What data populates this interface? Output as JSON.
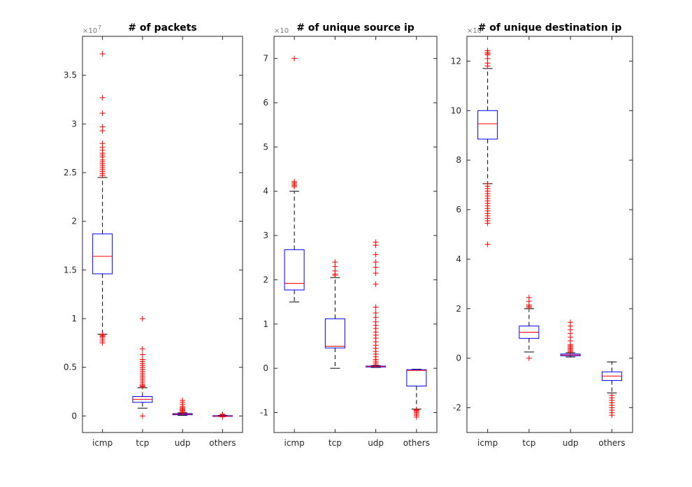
{
  "colors": {
    "box": "#0000ff",
    "median": "#ff0000",
    "outlier": "#ff0000",
    "whisker": "#000000",
    "axis": "#262626"
  },
  "chart_data": [
    {
      "type": "box",
      "title": "# of packets",
      "categories": [
        "icmp",
        "tcp",
        "udp",
        "others"
      ],
      "ylim": [
        -0.17,
        3.9
      ],
      "yticks": [
        0,
        0.5,
        1,
        1.5,
        2,
        2.5,
        3,
        3.5
      ],
      "ytick_labels": [
        "0",
        "0.5",
        "1",
        "1.5",
        "2",
        "2.5",
        "3",
        "3.5"
      ],
      "y_exponent": "×10",
      "y_exponent_power": "7",
      "boxes": [
        {
          "category": "icmp",
          "whisker_low": 0.84,
          "q1": 1.46,
          "median": 1.64,
          "q3": 1.87,
          "whisker_high": 2.45,
          "outliers": [
            0.75,
            0.77,
            0.79,
            0.81,
            0.82,
            0.83,
            0.84,
            2.47,
            2.49,
            2.51,
            2.53,
            2.55,
            2.57,
            2.59,
            2.61,
            2.63,
            2.66,
            2.68,
            2.7,
            2.73,
            2.76,
            2.8,
            2.93,
            2.97,
            3.11,
            3.27,
            3.72
          ]
        },
        {
          "category": "tcp",
          "whisker_low": 0.08,
          "q1": 0.14,
          "median": 0.17,
          "q3": 0.2,
          "whisker_high": 0.29,
          "outliers": [
            0.0,
            0.3,
            0.31,
            0.32,
            0.34,
            0.36,
            0.38,
            0.4,
            0.42,
            0.44,
            0.46,
            0.48,
            0.5,
            0.52,
            0.54,
            0.56,
            0.58,
            0.63,
            0.69,
            1.0
          ]
        },
        {
          "category": "udp",
          "whisker_low": 0.005,
          "q1": 0.012,
          "median": 0.018,
          "q3": 0.024,
          "whisker_high": 0.032,
          "outliers": [
            0.035,
            0.045,
            0.055,
            0.065,
            0.075,
            0.085,
            0.1,
            0.12,
            0.14,
            0.16
          ]
        },
        {
          "category": "others",
          "whisker_low": -0.005,
          "q1": -0.002,
          "median": 0.0,
          "q3": 0.003,
          "whisker_high": 0.006,
          "outliers": [
            -0.01,
            0.012,
            0.018
          ]
        }
      ]
    },
    {
      "type": "box",
      "title": "# of unique source ip",
      "categories": [
        "icmp",
        "tcp",
        "udp",
        "others"
      ],
      "ylim": [
        -1.45,
        7.5
      ],
      "yticks": [
        -1,
        0,
        1,
        2,
        3,
        4,
        5,
        6,
        7
      ],
      "ytick_labels": [
        "-1",
        "0",
        "1",
        "2",
        "3",
        "4",
        "5",
        "6",
        "7"
      ],
      "y_exponent": "×10",
      "y_exponent_power": "",
      "boxes": [
        {
          "category": "icmp",
          "whisker_low": 1.5,
          "q1": 1.77,
          "median": 1.92,
          "q3": 2.68,
          "whisker_high": 4.0,
          "outliers": [
            4.1,
            4.13,
            4.16,
            4.19,
            4.22,
            7.0
          ]
        },
        {
          "category": "tcp",
          "whisker_low": 0.0,
          "q1": 0.46,
          "median": 0.5,
          "q3": 1.12,
          "whisker_high": 2.05,
          "outliers": [
            2.1,
            2.13,
            2.2,
            2.3,
            2.4
          ]
        },
        {
          "category": "udp",
          "whisker_low": 0.02,
          "q1": 0.03,
          "median": 0.04,
          "q3": 0.05,
          "whisker_high": 0.06,
          "outliers": [
            0.08,
            0.12,
            0.16,
            0.2,
            0.26,
            0.32,
            0.38,
            0.45,
            0.52,
            0.6,
            0.68,
            0.75,
            0.82,
            0.9,
            0.97,
            1.05,
            1.15,
            1.25,
            1.38,
            1.9,
            2.15,
            2.28,
            2.4,
            2.57,
            2.78,
            2.85
          ]
        },
        {
          "category": "others",
          "whisker_low": -0.92,
          "q1": -0.4,
          "median": -0.05,
          "q3": -0.03,
          "whisker_high": -0.02,
          "outliers": [
            -0.93,
            -0.95,
            -0.97,
            -1.0,
            -1.03,
            -1.06,
            -1.1
          ]
        }
      ]
    },
    {
      "type": "box",
      "title": "# of unique destination ip",
      "categories": [
        "icmp",
        "tcp",
        "udp",
        "others"
      ],
      "ylim": [
        -3.0,
        13.0
      ],
      "yticks": [
        -2,
        0,
        2,
        4,
        6,
        8,
        10,
        12
      ],
      "ytick_labels": [
        "-2",
        "0",
        "2",
        "4",
        "6",
        "8",
        "10",
        "12"
      ],
      "y_exponent": "×10",
      "y_exponent_power": "",
      "boxes": [
        {
          "category": "icmp",
          "whisker_low": 7.05,
          "q1": 8.85,
          "median": 9.47,
          "q3": 10.0,
          "whisker_high": 11.7,
          "outliers": [
            4.6,
            5.45,
            5.55,
            5.65,
            5.75,
            5.85,
            5.95,
            6.05,
            6.15,
            6.25,
            6.35,
            6.45,
            6.55,
            6.65,
            6.75,
            6.85,
            6.95,
            7.05,
            11.8,
            11.92,
            12.1,
            12.25,
            12.3,
            12.35,
            12.42
          ]
        },
        {
          "category": "tcp",
          "whisker_low": 0.25,
          "q1": 0.8,
          "median": 1.05,
          "q3": 1.3,
          "whisker_high": 2.0,
          "outliers": [
            0.0,
            2.05,
            2.1,
            2.15,
            2.3,
            2.45
          ]
        },
        {
          "category": "udp",
          "whisker_low": 0.05,
          "q1": 0.1,
          "median": 0.13,
          "q3": 0.17,
          "whisker_high": 0.22,
          "outliers": [
            0.25,
            0.3,
            0.35,
            0.4,
            0.45,
            0.5,
            0.55,
            0.7,
            0.85,
            1.0,
            1.15,
            1.3,
            1.45
          ]
        },
        {
          "category": "others",
          "whisker_low": -1.4,
          "q1": -0.9,
          "median": -0.72,
          "q3": -0.55,
          "whisker_high": -0.15,
          "outliers": [
            -1.5,
            -1.6,
            -1.7,
            -1.8,
            -1.9,
            -2.0,
            -2.1,
            -2.2,
            -2.3
          ]
        }
      ]
    }
  ]
}
